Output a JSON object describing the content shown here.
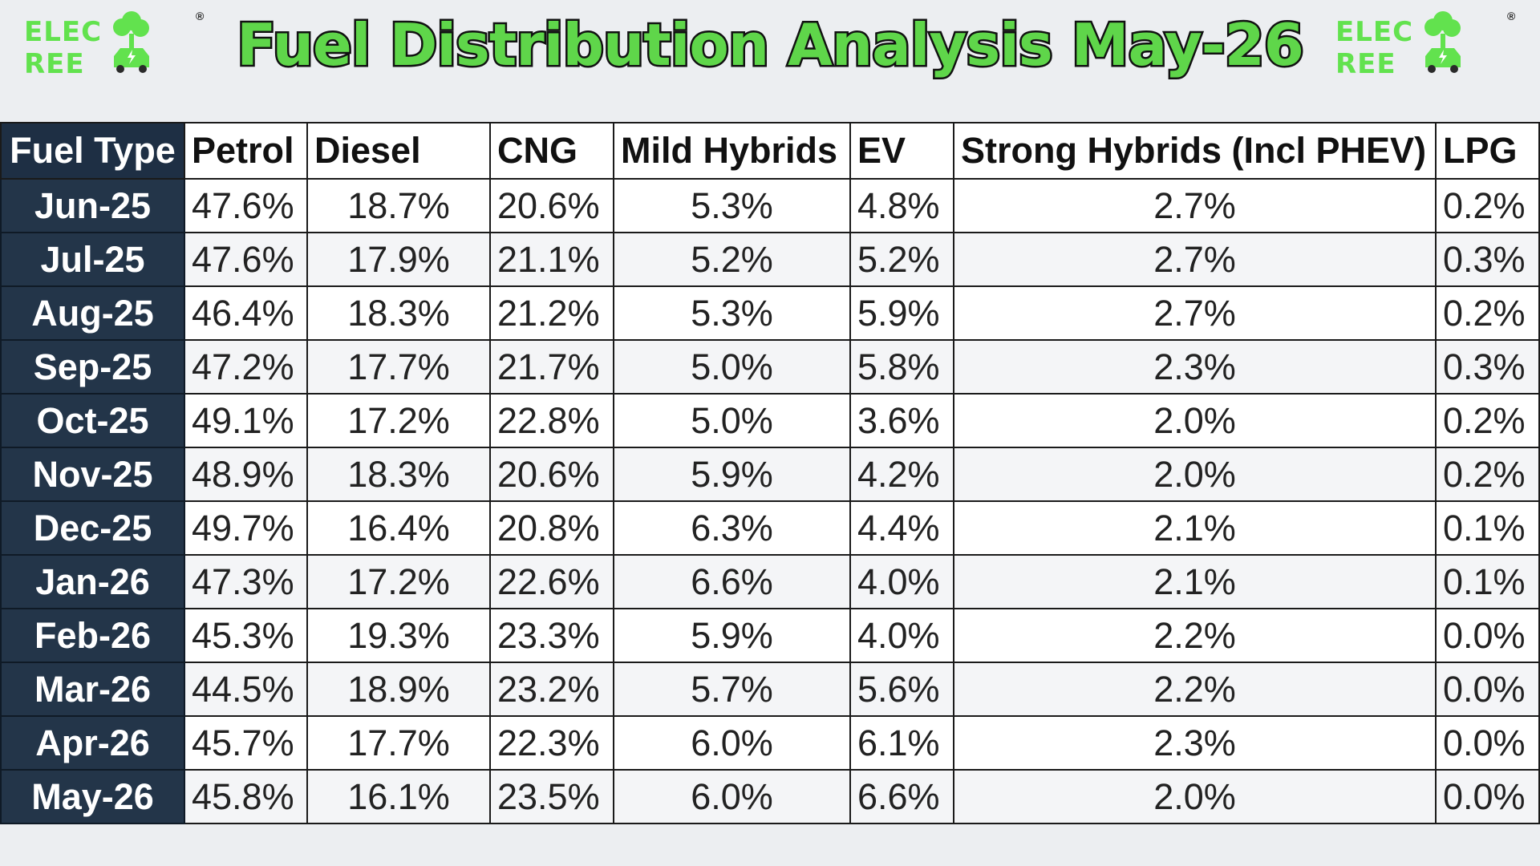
{
  "header": {
    "title": "Fuel Distribution Analysis May-26",
    "logo_text_left": "ELEC",
    "logo_text_right": "REE",
    "logo_reg": "®",
    "logo_icon": "tree-car-icon"
  },
  "colors": {
    "title_fill": "#5fd64a",
    "logo_green": "#62e24e",
    "month_column_bg": "#233549",
    "page_bg": "#eceef1"
  },
  "table": {
    "headers": [
      "Fuel Type",
      "Petrol",
      "Diesel",
      "CNG",
      "Mild Hybrids",
      "EV",
      "Strong Hybrids (Incl PHEV)",
      "LPG"
    ],
    "rows": [
      [
        "Jun-25",
        "47.6%",
        "18.7%",
        "20.6%",
        "5.3%",
        "4.8%",
        "2.7%",
        "0.2%"
      ],
      [
        "Jul-25",
        "47.6%",
        "17.9%",
        "21.1%",
        "5.2%",
        "5.2%",
        "2.7%",
        "0.3%"
      ],
      [
        "Aug-25",
        "46.4%",
        "18.3%",
        "21.2%",
        "5.3%",
        "5.9%",
        "2.7%",
        "0.2%"
      ],
      [
        "Sep-25",
        "47.2%",
        "17.7%",
        "21.7%",
        "5.0%",
        "5.8%",
        "2.3%",
        "0.3%"
      ],
      [
        "Oct-25",
        "49.1%",
        "17.2%",
        "22.8%",
        "5.0%",
        "3.6%",
        "2.0%",
        "0.2%"
      ],
      [
        "Nov-25",
        "48.9%",
        "18.3%",
        "20.6%",
        "5.9%",
        "4.2%",
        "2.0%",
        "0.2%"
      ],
      [
        "Dec-25",
        "49.7%",
        "16.4%",
        "20.8%",
        "6.3%",
        "4.4%",
        "2.1%",
        "0.1%"
      ],
      [
        "Jan-26",
        "47.3%",
        "17.2%",
        "22.6%",
        "6.6%",
        "4.0%",
        "2.1%",
        "0.1%"
      ],
      [
        "Feb-26",
        "45.3%",
        "19.3%",
        "23.3%",
        "5.9%",
        "4.0%",
        "2.2%",
        "0.0%"
      ],
      [
        "Mar-26",
        "44.5%",
        "18.9%",
        "23.2%",
        "5.7%",
        "5.6%",
        "2.2%",
        "0.0%"
      ],
      [
        "Apr-26",
        "45.7%",
        "17.7%",
        "22.3%",
        "6.0%",
        "6.1%",
        "2.3%",
        "0.0%"
      ],
      [
        "May-26",
        "45.8%",
        "16.1%",
        "23.5%",
        "6.0%",
        "6.6%",
        "2.0%",
        "0.0%"
      ]
    ]
  }
}
